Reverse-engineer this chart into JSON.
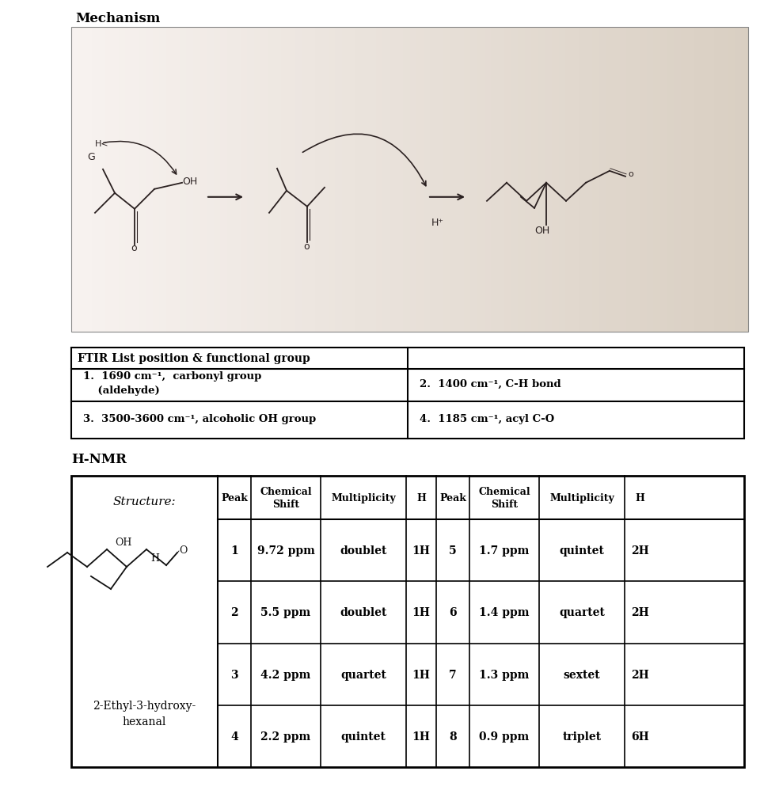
{
  "title_mechanism": "Mechanism",
  "title_hnmr": "H-NMR",
  "ftir_header": "FTIR List position & functional group",
  "nmr_headers": [
    "Peak",
    "Chemical\nShift",
    "Multiplicity",
    "H",
    "Peak",
    "Chemical\nShift",
    "Multiplicity",
    "H"
  ],
  "nmr_rows": [
    [
      "1",
      "9.72 ppm",
      "doublet",
      "1H",
      "5",
      "1.7 ppm",
      "quintet",
      "2H"
    ],
    [
      "2",
      "5.5 ppm",
      "doublet",
      "1H",
      "6",
      "1.4 ppm",
      "quartet",
      "2H"
    ],
    [
      "3",
      "4.2 ppm",
      "quartet",
      "1H",
      "7",
      "1.3 ppm",
      "sextet",
      "2H"
    ],
    [
      "4",
      "2.2 ppm",
      "quintet",
      "1H",
      "8",
      "0.9 ppm",
      "triplet",
      "6H"
    ]
  ],
  "structure_label": "Structure:",
  "compound_name": "2-Ethyl-3-hydroxy-\nhexanal",
  "bg_color": "#ffffff",
  "text_color": "#000000",
  "ftir_row1_left": "1.  1690 cm⁻¹,  carbonyl group\n    (aldehyde)",
  "ftir_row1_right": "2.  1400 cm⁻¹, C-H bond",
  "ftir_row2_left": "3.  3500-3600 cm⁻¹, alcoholic OH group",
  "ftir_row2_right": "4.  1185 cm⁻¹, acyl C-O"
}
